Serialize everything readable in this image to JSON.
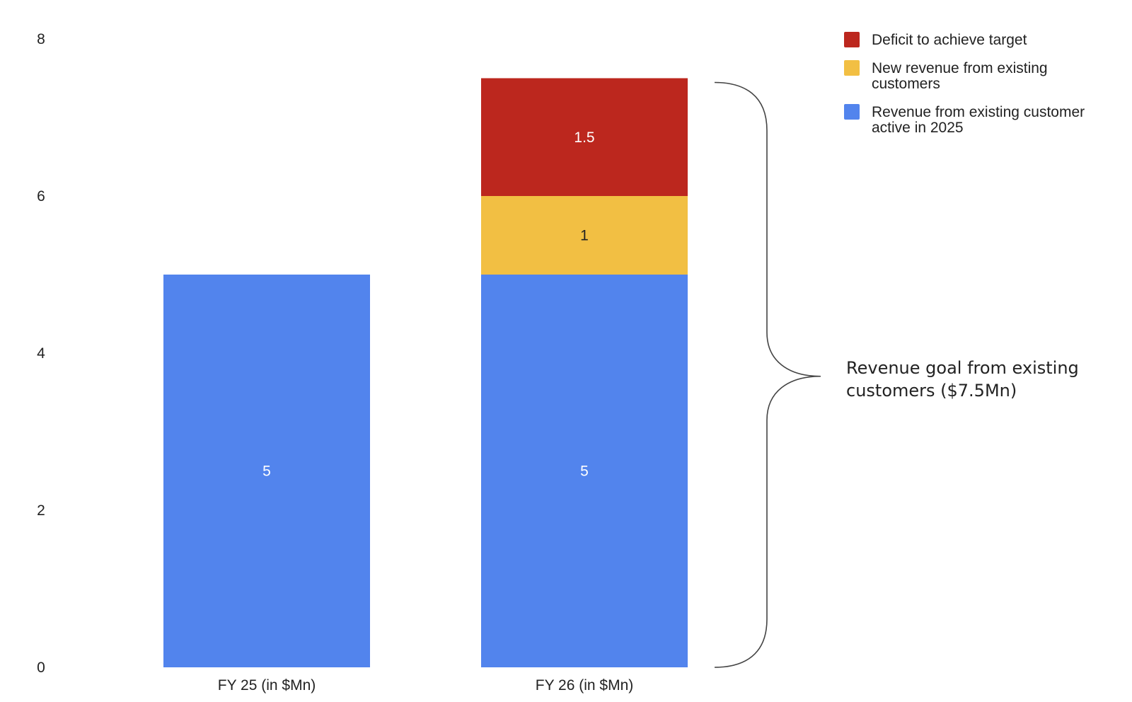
{
  "chart_data": {
    "type": "bar",
    "stacked": true,
    "title": "",
    "xlabel": "",
    "ylabel": "",
    "ylim": [
      0,
      8
    ],
    "yticks": [
      0,
      2,
      4,
      6,
      8
    ],
    "grid": false,
    "legend_position": "top-right",
    "categories": [
      "FY 25 (in $Mn)",
      "FY 26 (in $Mn)"
    ],
    "series": [
      {
        "name": "Revenue from existing customer active in 2025",
        "legend_lines": [
          "Revenue from existing customer",
          "active in 2025"
        ],
        "color": "#5284ed",
        "label_color": "#ffffff",
        "values": [
          5,
          5
        ],
        "labels": [
          "5",
          "5"
        ]
      },
      {
        "name": "New revenue from existing customers",
        "legend_lines": [
          "New revenue from existing",
          "customers"
        ],
        "color": "#f2bf43",
        "label_color": "#222222",
        "values": [
          0,
          1
        ],
        "labels": [
          "",
          "1"
        ]
      },
      {
        "name": "Deficit to achieve target",
        "legend_lines": [
          "Deficit to achieve target"
        ],
        "color": "#bc271e",
        "label_color": "#ffffff",
        "values": [
          0,
          1.5
        ],
        "labels": [
          "",
          "1.5"
        ]
      }
    ],
    "legend_order": [
      2,
      1,
      0
    ],
    "annotation": {
      "lines": [
        "Revenue goal from existing",
        "customers ($7.5Mn)"
      ],
      "brace_category_index": 1,
      "brace_from": 0,
      "brace_to": 7.5,
      "brace_color": "#444444"
    }
  }
}
